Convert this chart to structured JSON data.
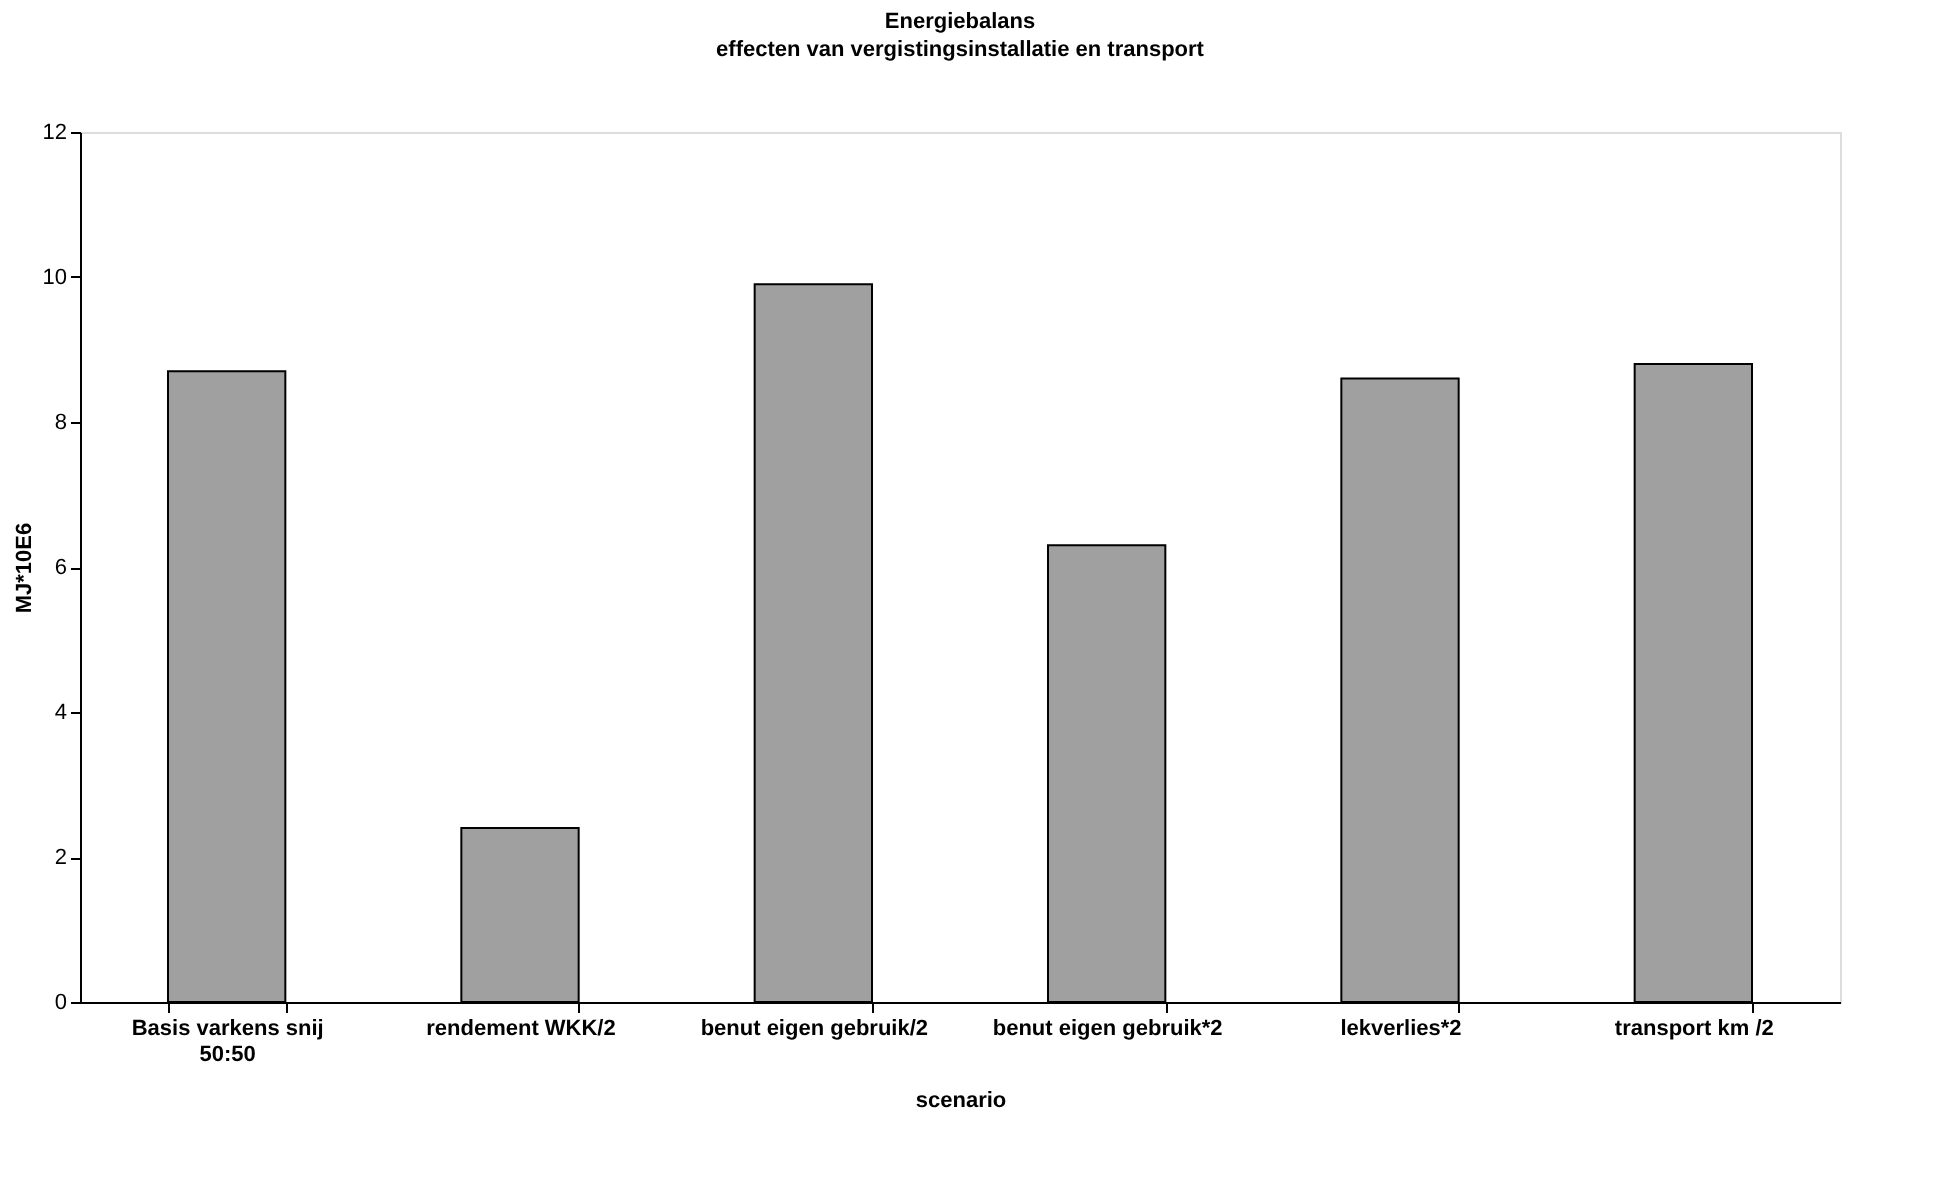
{
  "chart_data": {
    "type": "bar",
    "title": "Energiebalans",
    "subtitle": "effecten van vergistingsinstallatie en transport",
    "xlabel": "scenario",
    "ylabel": "MJ*10E6",
    "categories": [
      "Basis varkens snij 50:50",
      "rendement WKK/2",
      "benut eigen gebruik/2",
      "benut eigen gebruik*2",
      "lekverlies*2",
      "transport km /2"
    ],
    "values": [
      8.7,
      2.4,
      9.9,
      6.3,
      8.6,
      8.8
    ],
    "color": "#a0a0a0",
    "ylim": [
      0,
      12
    ],
    "yticks": [
      0,
      2,
      4,
      6,
      8,
      10,
      12
    ],
    "grid": false
  }
}
